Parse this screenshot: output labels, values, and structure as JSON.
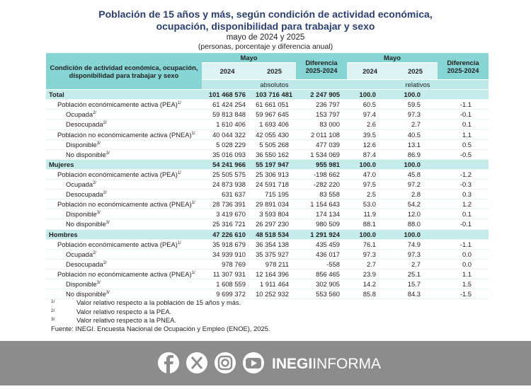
{
  "header": {
    "title_line1": "Población de 15 años y más, según condición de actividad económica,",
    "title_line2": "ocupación, disponibilidad para trabajar y sexo",
    "subtitle": "mayo de 2024 y 2025",
    "units": "(personas, porcentaje y diferencia anual)"
  },
  "table": {
    "col_header": "Condición de actividad económica, ocupación, disponibilidad para trabajar y sexo",
    "abs_group": "Mayo",
    "abs_2024": "2024",
    "abs_2025": "2025",
    "abs_diff": "Diferencia 2025-2024",
    "rel_group": "Mayo",
    "rel_2024": "2024",
    "rel_2025": "2025",
    "rel_diff": "Diferencia 2025-2024",
    "abs_label": "absolutos",
    "rel_label": "relativos",
    "sections": [
      {
        "label": "Total",
        "values": [
          "101 468 576",
          "103 716 481",
          "2 247 905",
          "100.0",
          "100.0"
        ],
        "items": [
          {
            "label": "Población económicamente activa (PEA)",
            "note": "1/",
            "values": [
              "61 424 254",
              "61 661 051",
              "236 797",
              "60.5",
              "59.5",
              "-1.1"
            ],
            "children": [
              {
                "label": "Ocupada",
                "note": "2/",
                "values": [
                  "59 813 848",
                  "59 967 645",
                  "153 797",
                  "97.4",
                  "97.3",
                  "-0.1"
                ]
              },
              {
                "label": "Desocupada",
                "note": "2/",
                "values": [
                  "1 610 406",
                  "1 693 406",
                  "83 000",
                  "2.6",
                  "2.7",
                  "0.1"
                ]
              }
            ]
          },
          {
            "label": "Población no económicamente activa (PNEA)",
            "note": "1/",
            "values": [
              "40 044 322",
              "42 055 430",
              "2 011 108",
              "39.5",
              "40.5",
              "1.1"
            ],
            "children": [
              {
                "label": "Disponible",
                "note": "3/",
                "values": [
                  "5 028 229",
                  "5 505 268",
                  "477 039",
                  "12.6",
                  "13.1",
                  "0.5"
                ]
              },
              {
                "label": "No disponible",
                "note": "3/",
                "values": [
                  "35 016 093",
                  "36 550 162",
                  "1 534 069",
                  "87.4",
                  "86.9",
                  "-0.5"
                ]
              }
            ]
          }
        ]
      },
      {
        "label": "Mujeres",
        "values": [
          "54 241 966",
          "55 197 947",
          "955 981",
          "100.0",
          "100.0"
        ],
        "items": [
          {
            "label": "Población económicamente activa (PEA)",
            "note": "1/",
            "values": [
              "25 505 575",
              "25 306 913",
              "-198 662",
              "47.0",
              "45.8",
              "-1.2"
            ],
            "children": [
              {
                "label": "Ocupada",
                "note": "2/",
                "values": [
                  "24 873 938",
                  "24 591 718",
                  "-282 220",
                  "97.5",
                  "97.2",
                  "-0.3"
                ]
              },
              {
                "label": "Desocupada",
                "note": "2/",
                "values": [
                  "631 637",
                  "715 195",
                  "83 558",
                  "2.5",
                  "2.8",
                  "0.3"
                ]
              }
            ]
          },
          {
            "label": "Población no económicamente activa (PNEA)",
            "note": "1/",
            "values": [
              "28 736 391",
              "29 891 034",
              "1 154 643",
              "53.0",
              "54.2",
              "1.2"
            ],
            "children": [
              {
                "label": "Disponible",
                "note": "3/",
                "values": [
                  "3 419 670",
                  "3 593 804",
                  "174 134",
                  "11.9",
                  "12.0",
                  "0.1"
                ]
              },
              {
                "label": "No disponible",
                "note": "3/",
                "values": [
                  "25 316 721",
                  "26 297 230",
                  "980 509",
                  "88.1",
                  "88.0",
                  "-0.1"
                ]
              }
            ]
          }
        ]
      },
      {
        "label": "Hombres",
        "values": [
          "47 226 610",
          "48 518 534",
          "1 291 924",
          "100.0",
          "100.0"
        ],
        "items": [
          {
            "label": "Población económicamente activa (PEA)",
            "note": "1/",
            "values": [
              "35 918 679",
              "36 354 138",
              "435 459",
              "76.1",
              "74.9",
              "-1.1"
            ],
            "children": [
              {
                "label": "Ocupada",
                "note": "2/",
                "values": [
                  "34 939 910",
                  "35 375 927",
                  "436 017",
                  "97.3",
                  "97.3",
                  "0.0"
                ]
              },
              {
                "label": "Desocupada",
                "note": "2/",
                "values": [
                  "978 769",
                  "978 211",
                  "-558",
                  "2.7",
                  "2.7",
                  "0.0"
                ]
              }
            ]
          },
          {
            "label": "Población no económicamente activa (PNEA)",
            "note": "1/",
            "values": [
              "11 307 931",
              "12 164 396",
              "856 465",
              "23.9",
              "25.1",
              "1.1"
            ],
            "children": [
              {
                "label": "Disponible",
                "note": "3/",
                "values": [
                  "1 608 559",
                  "1 911 464",
                  "302 905",
                  "14.2",
                  "15.7",
                  "1.5"
                ]
              },
              {
                "label": "No disponible",
                "note": "3/",
                "values": [
                  "9 699 372",
                  "10 252 932",
                  "553 560",
                  "85.8",
                  "84.3",
                  "-1.5"
                ]
              }
            ]
          }
        ]
      }
    ]
  },
  "notes": [
    {
      "mark": "1/",
      "text": "Valor relativo respecto a la población de 15 años y más."
    },
    {
      "mark": "2/",
      "text": "Valor relativo respecto a la PEA."
    },
    {
      "mark": "3/",
      "text": "Valor relativo respecto a la PNEA."
    }
  ],
  "source": "Fuente: INEGI. Encuesta Nacional de Ocupación y Empleo (ENOE), 2025.",
  "footer": {
    "brand": "INEGI",
    "brand2": "INFORMA"
  }
}
